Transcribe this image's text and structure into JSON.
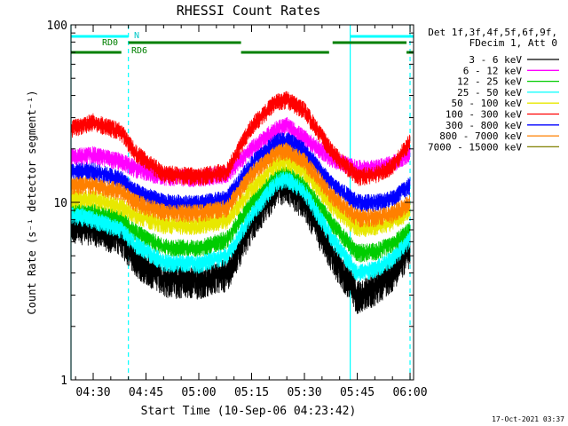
{
  "chart_data": {
    "type": "line",
    "title": "RHESSI Count Rates",
    "xlabel": "Start Time (10-Sep-06 04:23:42)",
    "ylabel": "Count Rate (s⁻¹ detector segment⁻¹)",
    "y_scale": "log",
    "ylim": [
      1,
      100
    ],
    "y_ticks": [
      {
        "value": 1,
        "label": "1"
      },
      {
        "value": 10,
        "label": "10"
      },
      {
        "value": 100,
        "label": "100"
      }
    ],
    "x_start": "04:23:42",
    "x_end": "06:01:00",
    "x_ticks": [
      "04:30",
      "04:45",
      "05:00",
      "05:15",
      "05:30",
      "05:45",
      "06:00"
    ],
    "legend_header": [
      "Det 1f,3f,4f,5f,6f,9f,",
      "FDecim 1, Att 0"
    ],
    "legend_position": "right",
    "series": [
      {
        "name": "3 - 6 keV",
        "color": "#000000",
        "points": [
          [
            "04:23:42",
            7.5
          ],
          [
            "04:30",
            7.2
          ],
          [
            "04:38",
            6.3
          ],
          [
            "04:42",
            4.8
          ],
          [
            "04:50",
            3.7
          ],
          [
            "05:00",
            3.6
          ],
          [
            "05:08",
            4.0
          ],
          [
            "05:15",
            7.5
          ],
          [
            "05:22",
            12.0
          ],
          [
            "05:25",
            12.5
          ],
          [
            "05:30",
            10.0
          ],
          [
            "05:38",
            5.0
          ],
          [
            "05:45",
            3.0
          ],
          [
            "05:50",
            3.3
          ],
          [
            "05:55",
            4.0
          ],
          [
            "06:00",
            5.5
          ]
        ]
      },
      {
        "name": "6 - 12 keV",
        "color": "#ff00ff",
        "points": [
          [
            "04:23:42",
            18.0
          ],
          [
            "04:30",
            18.5
          ],
          [
            "04:38",
            17.0
          ],
          [
            "04:42",
            15.5
          ],
          [
            "04:50",
            14.0
          ],
          [
            "05:00",
            13.8
          ],
          [
            "05:08",
            14.5
          ],
          [
            "05:15",
            20.0
          ],
          [
            "05:22",
            26.0
          ],
          [
            "05:25",
            27.0
          ],
          [
            "05:30",
            23.0
          ],
          [
            "05:38",
            17.5
          ],
          [
            "05:45",
            15.5
          ],
          [
            "05:50",
            15.5
          ],
          [
            "05:55",
            16.5
          ],
          [
            "06:00",
            19.0
          ]
        ]
      },
      {
        "name": "12 - 25 keV",
        "color": "#00cc00",
        "points": [
          [
            "04:23:42",
            9.0
          ],
          [
            "04:30",
            8.8
          ],
          [
            "04:38",
            8.0
          ],
          [
            "04:42",
            6.8
          ],
          [
            "04:50",
            5.6
          ],
          [
            "05:00",
            5.5
          ],
          [
            "05:08",
            6.2
          ],
          [
            "05:15",
            10.0
          ],
          [
            "05:22",
            14.0
          ],
          [
            "05:25",
            14.5
          ],
          [
            "05:30",
            12.5
          ],
          [
            "05:38",
            7.5
          ],
          [
            "05:45",
            5.2
          ],
          [
            "05:50",
            5.3
          ],
          [
            "05:55",
            5.8
          ],
          [
            "06:00",
            7.0
          ]
        ]
      },
      {
        "name": "25 - 50 keV",
        "color": "#00ffff",
        "points": [
          [
            "04:23:42",
            8.5
          ],
          [
            "04:30",
            8.0
          ],
          [
            "04:38",
            7.0
          ],
          [
            "04:42",
            5.8
          ],
          [
            "04:50",
            4.6
          ],
          [
            "05:00",
            4.5
          ],
          [
            "05:08",
            5.0
          ],
          [
            "05:15",
            8.5
          ],
          [
            "05:22",
            13.0
          ],
          [
            "05:25",
            13.5
          ],
          [
            "05:30",
            11.5
          ],
          [
            "05:38",
            6.2
          ],
          [
            "05:45",
            4.0
          ],
          [
            "05:50",
            4.2
          ],
          [
            "05:55",
            4.8
          ],
          [
            "06:00",
            6.2
          ]
        ]
      },
      {
        "name": "50 - 100 keV",
        "color": "#e8e800",
        "points": [
          [
            "04:23:42",
            10.5
          ],
          [
            "04:30",
            10.5
          ],
          [
            "04:38",
            9.5
          ],
          [
            "04:42",
            8.5
          ],
          [
            "04:50",
            7.5
          ],
          [
            "05:00",
            7.4
          ],
          [
            "05:08",
            8.0
          ],
          [
            "05:15",
            12.0
          ],
          [
            "05:22",
            16.5
          ],
          [
            "05:25",
            17.0
          ],
          [
            "05:30",
            15.0
          ],
          [
            "05:38",
            9.5
          ],
          [
            "05:45",
            7.2
          ],
          [
            "05:50",
            7.3
          ],
          [
            "05:55",
            7.8
          ],
          [
            "06:00",
            9.0
          ]
        ]
      },
      {
        "name": "100 - 300 keV",
        "color": "#ff0000",
        "points": [
          [
            "04:23:42",
            26.0
          ],
          [
            "04:30",
            28.5
          ],
          [
            "04:38",
            25.0
          ],
          [
            "04:42",
            19.0
          ],
          [
            "04:50",
            14.5
          ],
          [
            "05:00",
            14.0
          ],
          [
            "05:08",
            15.0
          ],
          [
            "05:15",
            27.0
          ],
          [
            "05:22",
            37.0
          ],
          [
            "05:25",
            38.0
          ],
          [
            "05:30",
            33.0
          ],
          [
            "05:38",
            19.0
          ],
          [
            "05:45",
            14.0
          ],
          [
            "05:50",
            14.3
          ],
          [
            "05:55",
            16.0
          ],
          [
            "06:00",
            22.0
          ]
        ]
      },
      {
        "name": "300 - 800 keV",
        "color": "#0000ff",
        "points": [
          [
            "04:23:42",
            15.0
          ],
          [
            "04:30",
            15.0
          ],
          [
            "04:38",
            13.5
          ],
          [
            "04:42",
            11.5
          ],
          [
            "04:50",
            10.0
          ],
          [
            "05:00",
            9.8
          ],
          [
            "05:08",
            10.5
          ],
          [
            "05:15",
            16.5
          ],
          [
            "05:22",
            22.0
          ],
          [
            "05:25",
            22.5
          ],
          [
            "05:30",
            19.5
          ],
          [
            "05:38",
            12.5
          ],
          [
            "05:45",
            10.0
          ],
          [
            "05:50",
            10.0
          ],
          [
            "05:55",
            10.5
          ],
          [
            "06:00",
            12.5
          ]
        ]
      },
      {
        "name": "800 - 7000 keV",
        "color": "#ff8000",
        "points": [
          [
            "04:23:42",
            12.5
          ],
          [
            "04:30",
            12.5
          ],
          [
            "04:38",
            11.5
          ],
          [
            "04:42",
            10.0
          ],
          [
            "04:50",
            8.8
          ],
          [
            "05:00",
            8.7
          ],
          [
            "05:08",
            9.3
          ],
          [
            "05:15",
            14.5
          ],
          [
            "05:22",
            19.0
          ],
          [
            "05:25",
            19.5
          ],
          [
            "05:30",
            17.0
          ],
          [
            "05:38",
            10.8
          ],
          [
            "05:45",
            8.2
          ],
          [
            "05:50",
            8.2
          ],
          [
            "05:55",
            8.6
          ],
          [
            "06:00",
            10.0
          ]
        ]
      },
      {
        "name": "7000 - 15000 keV",
        "color": "#808000",
        "points": []
      }
    ],
    "flags": [
      {
        "label": "N",
        "color": "#00ffff",
        "level": "top",
        "segments": [
          [
            "04:23:42",
            "04:40"
          ],
          [
            "05:43",
            "06:01"
          ]
        ]
      },
      {
        "label": "RD0",
        "color": "#008000",
        "level": "middle",
        "segments": [
          [
            "04:40",
            "05:12"
          ],
          [
            "05:38",
            "05:59"
          ]
        ]
      },
      {
        "label": "RD6",
        "color": "#008000",
        "level": "bottom",
        "segments": [
          [
            "04:23:42",
            "04:38"
          ],
          [
            "05:12",
            "05:37"
          ],
          [
            "05:59",
            "06:01"
          ]
        ]
      }
    ],
    "vlines": [
      {
        "time": "04:23:42",
        "style": "solid",
        "color": "#00ffff"
      },
      {
        "time": "04:40",
        "style": "dashed",
        "color": "#00ffff"
      },
      {
        "time": "05:43",
        "style": "solid",
        "color": "#00ffff"
      },
      {
        "time": "06:00",
        "style": "dashed",
        "color": "#00ffff"
      }
    ],
    "timestamp": "17-Oct-2021 03:37"
  }
}
